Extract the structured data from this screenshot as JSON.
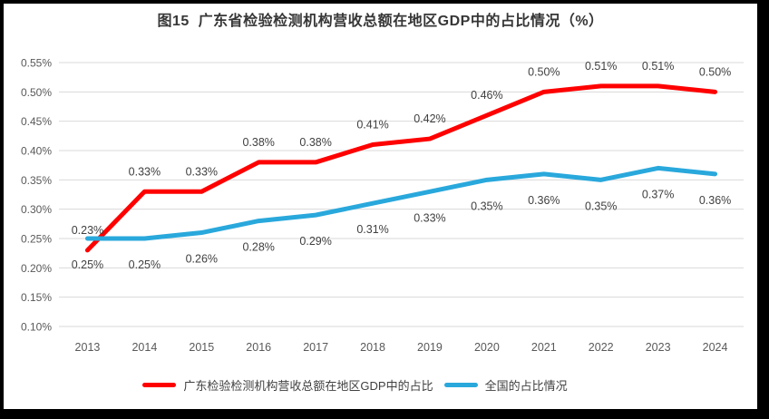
{
  "frame": {
    "border_color": "#000000",
    "chart_background": "#ffffff"
  },
  "chart_data": {
    "type": "line",
    "title": "图15  广东省检验检测机构营收总额在地区GDP中的占比情况（%）",
    "categories": [
      "2013",
      "2014",
      "2015",
      "2016",
      "2017",
      "2018",
      "2019",
      "2020",
      "2021",
      "2022",
      "2023",
      "2024"
    ],
    "series": [
      {
        "name": "广东检验检测机构营收总额在地区GDP中的占比",
        "color": "#FF0000",
        "values": [
          0.23,
          0.33,
          0.33,
          0.38,
          0.38,
          0.41,
          0.42,
          0.46,
          0.5,
          0.51,
          0.51,
          0.5
        ],
        "data_labels": [
          "0.23%",
          "0.33%",
          "0.33%",
          "0.38%",
          "0.38%",
          "0.41%",
          "0.42%",
          "0.46%",
          "0.50%",
          "0.51%",
          "0.51%",
          "0.50%"
        ],
        "label_position": "above"
      },
      {
        "name": "全国的占比情况",
        "color": "#29A8DC",
        "values": [
          0.25,
          0.25,
          0.26,
          0.28,
          0.29,
          0.31,
          0.33,
          0.35,
          0.36,
          0.35,
          0.37,
          0.36
        ],
        "data_labels": [
          "0.25%",
          "0.25%",
          "0.26%",
          "0.28%",
          "0.29%",
          "0.31%",
          "0.33%",
          "0.35%",
          "0.36%",
          "0.35%",
          "0.37%",
          "0.36%"
        ],
        "label_position": "below"
      }
    ],
    "y_axis": {
      "min": 0.1,
      "max": 0.55,
      "step": 0.05,
      "tick_labels": [
        "0.10%",
        "0.15%",
        "0.20%",
        "0.25%",
        "0.30%",
        "0.35%",
        "0.40%",
        "0.45%",
        "0.50%",
        "0.55%"
      ]
    },
    "grid": "horizontal",
    "legend_position": "bottom",
    "colors": {
      "gridline": "#D9D9D9",
      "axis_text": "#595959",
      "data_label_text": "#404040",
      "title_text": "#363636"
    }
  }
}
